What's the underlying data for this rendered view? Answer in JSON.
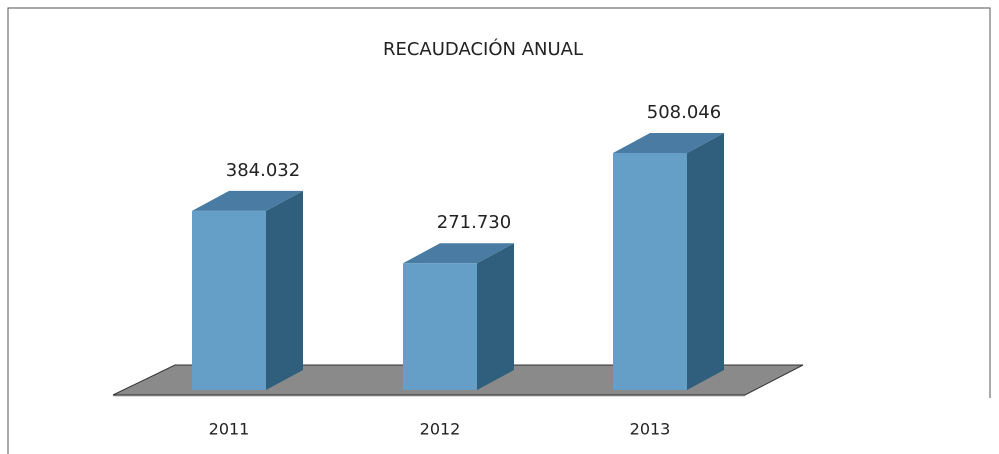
{
  "chart_data": {
    "type": "bar3d",
    "title": "RECAUDACIÓN ANUAL",
    "categories": [
      "2011",
      "2012",
      "2013"
    ],
    "values": [
      384032,
      271730,
      508046
    ],
    "value_labels": [
      "384.032",
      "271.730",
      "508.046"
    ],
    "color": "#659ec7"
  }
}
